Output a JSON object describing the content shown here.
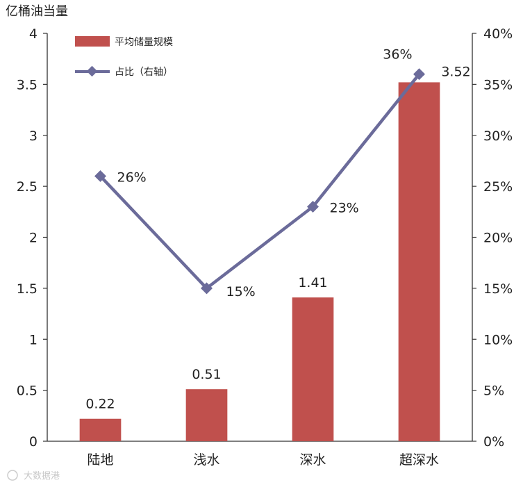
{
  "chart_data": {
    "type": "bar",
    "ylabel": "亿桶油当量",
    "categories": [
      "陆地",
      "浅水",
      "深水",
      "超深水"
    ],
    "ylim": [
      0,
      4
    ],
    "y_ticks": [
      "0",
      "0.5",
      "1",
      "1.5",
      "2",
      "2.5",
      "3",
      "3.5",
      "4"
    ],
    "y2lim": [
      0,
      40
    ],
    "y2_ticks": [
      "0%",
      "5%",
      "10%",
      "15%",
      "20%",
      "25%",
      "30%",
      "35%",
      "40%"
    ],
    "series": [
      {
        "name": "平均储量规模",
        "type": "bar",
        "axis": "left",
        "values": [
          0.22,
          0.51,
          1.41,
          3.52
        ],
        "labels": [
          "0.22",
          "0.51",
          "1.41",
          "3.52"
        ],
        "color": "#c0504d"
      },
      {
        "name": "占比（右轴）",
        "type": "line",
        "axis": "right",
        "values": [
          26,
          15,
          23,
          36
        ],
        "labels": [
          "26%",
          "15%",
          "23%",
          "36%"
        ],
        "color": "#6b6b9a"
      }
    ],
    "legend_position": "top-left",
    "grid": false
  },
  "watermark": "大数据港"
}
